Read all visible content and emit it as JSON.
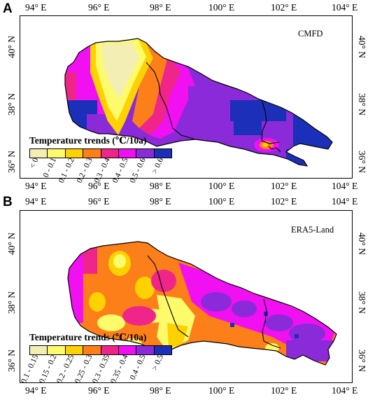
{
  "panels": [
    {
      "letter": "A",
      "source": "CMFD",
      "legend_title": "Temperature trends (℃/10a)",
      "legend_classes": [
        "< 0",
        "0 - 0.1",
        "0.1 - 0.2",
        "0.2 - 0.3",
        "0.3 - 0.4",
        "0.4 - 0.5",
        "0.5 - 0.6",
        "> 0.6"
      ],
      "legend_colors": [
        "#f3efb4",
        "#fdfb6c",
        "#fdd200",
        "#fd7f1a",
        "#f0258a",
        "#f010f2",
        "#8a2ad8",
        "#1c2fb8"
      ],
      "x_ticks": [
        "94° E",
        "96° E",
        "98° E",
        "100° E",
        "102° E",
        "104° E"
      ],
      "y_ticks": [
        "40° N",
        "38° N",
        "36° N"
      ]
    },
    {
      "letter": "B",
      "source": "ERA5-Land",
      "legend_title": "Temperature trends (℃/10a)",
      "legend_classes": [
        "0.1 - 0.15",
        "0.15 - 0.2",
        "0.2 - 0.25",
        "0.25 - 0.3",
        "0.3 - 0.35",
        "0.35 - 0.4",
        "0.4 - 0.5",
        "> 0.5"
      ],
      "legend_colors": [
        "#f3efb4",
        "#fdfb6c",
        "#fdd200",
        "#fd7f1a",
        "#f0258a",
        "#f010f2",
        "#8a2ad8",
        "#1c2fb8"
      ],
      "x_ticks": [
        "94° E",
        "96° E",
        "98° E",
        "100° E",
        "102° E",
        "104° E"
      ],
      "y_ticks": [
        "40° N",
        "38° N",
        "36° N"
      ]
    }
  ]
}
